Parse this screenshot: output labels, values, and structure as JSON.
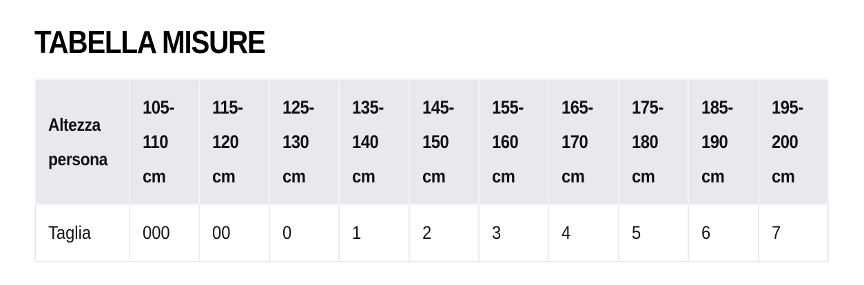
{
  "title": "TABELLA MISURE",
  "header": {
    "label": [
      "Altezza",
      "persona"
    ],
    "columns": [
      [
        "105-",
        "110",
        "cm"
      ],
      [
        "115-",
        "120",
        "cm"
      ],
      [
        "125-",
        "130",
        "cm"
      ],
      [
        "135-",
        "140",
        "cm"
      ],
      [
        "145-",
        "150",
        "cm"
      ],
      [
        "155-",
        "160",
        "cm"
      ],
      [
        "165-",
        "170",
        "cm"
      ],
      [
        "175-",
        "180",
        "cm"
      ],
      [
        "185-",
        "190",
        "cm"
      ],
      [
        "195-",
        "200",
        "cm"
      ]
    ]
  },
  "row": {
    "label": "Taglia",
    "values": [
      "000",
      "00",
      "0",
      "1",
      "2",
      "3",
      "4",
      "5",
      "6",
      "7"
    ]
  }
}
